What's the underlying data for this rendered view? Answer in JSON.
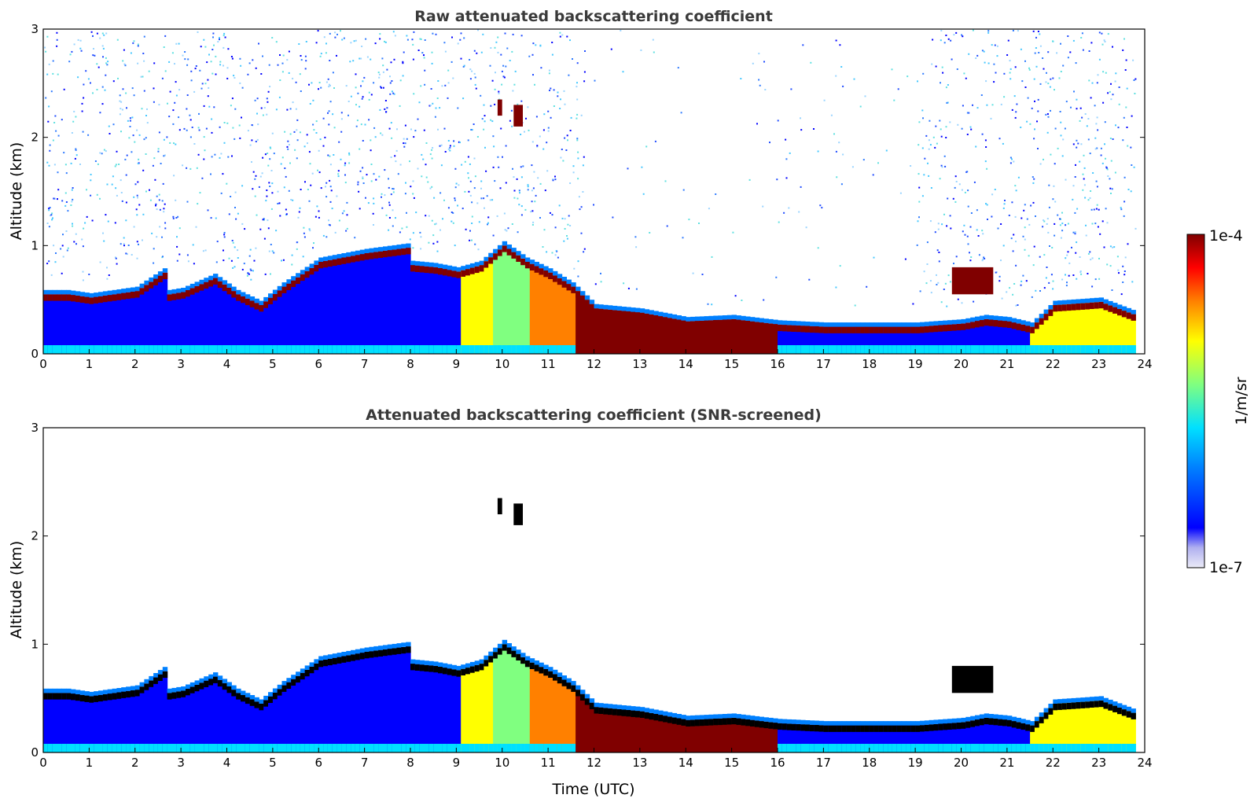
{
  "chart_data": [
    {
      "type": "heatmap",
      "title": "Raw attenuated backscattering coefficient",
      "xlabel": "",
      "ylabel": "Altitude (km)",
      "xlim": [
        0,
        24
      ],
      "ylim": [
        0,
        3
      ],
      "x_ticks": [
        "0",
        "1",
        "2",
        "3",
        "4",
        "5",
        "6",
        "7",
        "8",
        "9",
        "10",
        "11",
        "12",
        "13",
        "14",
        "15",
        "16",
        "17",
        "18",
        "19",
        "20",
        "21",
        "22",
        "23",
        "24"
      ],
      "y_ticks": [
        "0",
        "1",
        "2",
        "3"
      ],
      "screened": false,
      "boundary_layer_top_km": {
        "time_h": [
          0,
          0.5,
          1,
          2,
          2.6,
          2.7,
          3,
          3.7,
          4.2,
          4.7,
          5.2,
          6,
          7,
          7.9,
          8,
          8.5,
          9,
          9.5,
          10,
          10.5,
          11,
          11.5,
          12,
          13,
          14,
          15,
          16,
          17,
          18,
          19,
          20,
          20.5,
          21,
          21.5,
          22,
          23,
          23.8
        ],
        "height_km": [
          0.55,
          0.55,
          0.52,
          0.58,
          0.75,
          0.55,
          0.57,
          0.7,
          0.55,
          0.45,
          0.62,
          0.85,
          0.93,
          0.98,
          0.82,
          0.8,
          0.76,
          0.82,
          1.0,
          0.85,
          0.75,
          0.62,
          0.42,
          0.38,
          0.3,
          0.32,
          0.27,
          0.25,
          0.25,
          0.25,
          0.28,
          0.32,
          0.3,
          0.25,
          0.45,
          0.48,
          0.35
        ]
      },
      "features": [
        {
          "label": "cloud",
          "time_h": [
            9.9,
            10.0
          ],
          "alt_km": [
            2.2,
            2.35
          ]
        },
        {
          "label": "cloud",
          "time_h": [
            10.25,
            10.45
          ],
          "alt_km": [
            2.1,
            2.3
          ]
        },
        {
          "label": "cloud",
          "time_h": [
            19.8,
            20.7
          ],
          "alt_km": [
            0.55,
            0.8
          ]
        }
      ]
    },
    {
      "type": "heatmap",
      "title": "Attenuated backscattering coefficient (SNR-screened)",
      "xlabel": "Time (UTC)",
      "ylabel": "Altitude (km)",
      "xlim": [
        0,
        24
      ],
      "ylim": [
        0,
        3
      ],
      "x_ticks": [
        "0",
        "1",
        "2",
        "3",
        "4",
        "5",
        "6",
        "7",
        "8",
        "9",
        "10",
        "11",
        "12",
        "13",
        "14",
        "15",
        "16",
        "17",
        "18",
        "19",
        "20",
        "21",
        "22",
        "23",
        "24"
      ],
      "y_ticks": [
        "0",
        "1",
        "2",
        "3"
      ],
      "screened": true
    }
  ],
  "colorbar": {
    "label": "1/m/sr",
    "max_label": "1e-4",
    "min_label": "1e-7",
    "scale": "log",
    "range": [
      1e-07,
      0.0001
    ],
    "colormap": "jet",
    "colors": [
      "#ebebf7",
      "#b0b0f0",
      "#0000ff",
      "#0080ff",
      "#00e0ff",
      "#80ff80",
      "#ffff00",
      "#ff8000",
      "#ff0000",
      "#800000"
    ]
  }
}
